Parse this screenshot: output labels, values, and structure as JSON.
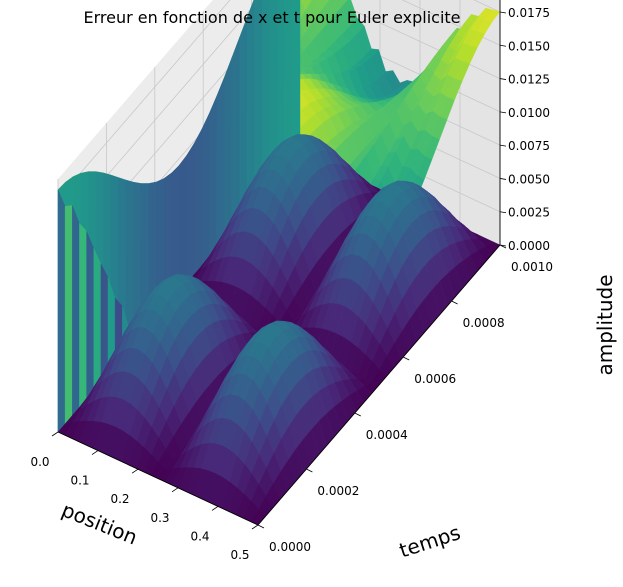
{
  "chart_data": {
    "type": "surface3d",
    "title": "Erreur en fonction de x et t pour Euler explicite",
    "xlabel": "position",
    "ylabel": "temps",
    "zlabel": "amplitude",
    "xlim": [
      0.0,
      0.5
    ],
    "ylim": [
      0.0,
      0.001
    ],
    "zlim": [
      0.0,
      0.019
    ],
    "x_ticks": [
      "0.0",
      "0.1",
      "0.2",
      "0.3",
      "0.4",
      "0.5"
    ],
    "y_ticks": [
      "0.0000",
      "0.0002",
      "0.0004",
      "0.0006",
      "0.0008",
      "0.0010"
    ],
    "z_ticks": [
      "0.0000",
      "0.0025",
      "0.0050",
      "0.0075",
      "0.0100",
      "0.0125",
      "0.0150",
      "0.0175"
    ],
    "colormap": "viridis",
    "surfaces": [
      {
        "level": "upper",
        "base": 0.0095,
        "peak": 0.0182
      },
      {
        "level": "lower",
        "base": 0.0,
        "peak": 0.0075
      }
    ],
    "grid": true
  }
}
